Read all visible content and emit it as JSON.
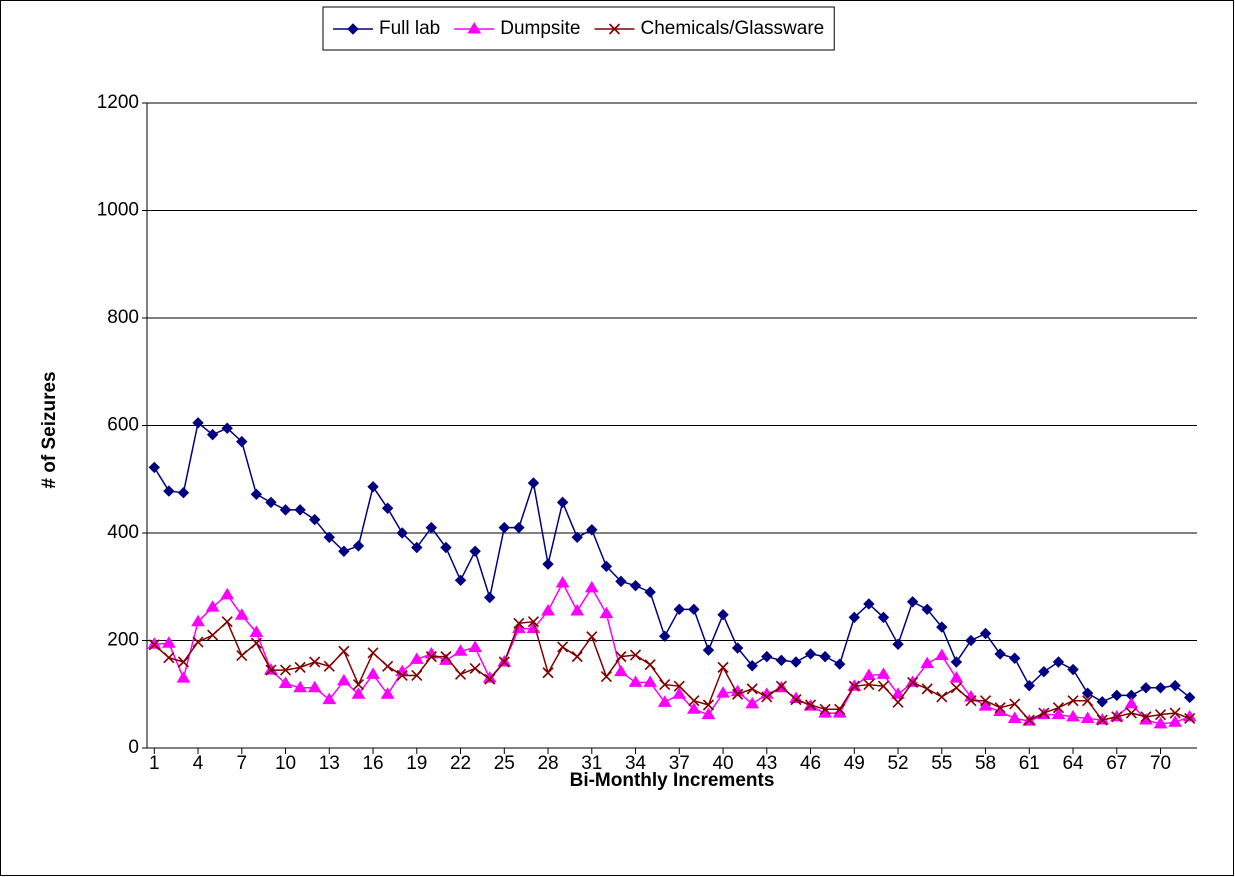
{
  "chart_data": {
    "type": "line",
    "x_label": "Bi-Monthly Increments",
    "y_label": "# of Seizures",
    "x": [
      1,
      2,
      3,
      4,
      5,
      6,
      7,
      8,
      9,
      10,
      11,
      12,
      13,
      14,
      15,
      16,
      17,
      18,
      19,
      20,
      21,
      22,
      23,
      24,
      25,
      26,
      27,
      28,
      29,
      30,
      31,
      32,
      33,
      34,
      35,
      36,
      37,
      38,
      39,
      40,
      41,
      42,
      43,
      44,
      45,
      46,
      47,
      48,
      49,
      50,
      51,
      52,
      53,
      54,
      55,
      56,
      57,
      58,
      59,
      60,
      61,
      62,
      63,
      64,
      65,
      66,
      67,
      68,
      69,
      70,
      71,
      72
    ],
    "xlim": [
      0.5,
      72.5
    ],
    "xticks": [
      1,
      4,
      7,
      10,
      13,
      16,
      19,
      22,
      25,
      28,
      31,
      34,
      37,
      40,
      43,
      46,
      49,
      52,
      55,
      58,
      61,
      64,
      67,
      70
    ],
    "ylim": [
      0,
      1200
    ],
    "yticks": [
      0,
      200,
      400,
      600,
      800,
      1000,
      1200
    ],
    "grid": true,
    "legend": "top",
    "series": [
      {
        "name": "Full lab",
        "color": "#000080",
        "marker": "diamond",
        "values": [
          522,
          478,
          475,
          605,
          583,
          595,
          570,
          472,
          457,
          443,
          443,
          425,
          392,
          366,
          376,
          486,
          446,
          400,
          373,
          410,
          373,
          312,
          366,
          280,
          410,
          410,
          493,
          342,
          457,
          392,
          406,
          338,
          310,
          302,
          290,
          208,
          258,
          258,
          182,
          248,
          186,
          153,
          170,
          163,
          160,
          175,
          170,
          156,
          243,
          268,
          243,
          193,
          272,
          258,
          225,
          160,
          200,
          213,
          175,
          167,
          116,
          142,
          160,
          146,
          102,
          86,
          98,
          98,
          112,
          112,
          116,
          94
        ]
      },
      {
        "name": "Dumpsite",
        "color": "#ff00ff",
        "marker": "triangle",
        "values": [
          193,
          195,
          130,
          235,
          262,
          285,
          247,
          215,
          145,
          120,
          112,
          112,
          90,
          125,
          100,
          137,
          100,
          142,
          165,
          175,
          163,
          180,
          187,
          130,
          160,
          222,
          222,
          255,
          307,
          255,
          298,
          250,
          142,
          122,
          122,
          85,
          100,
          72,
          62,
          102,
          105,
          82,
          100,
          112,
          92,
          78,
          65,
          65,
          115,
          135,
          137,
          100,
          122,
          157,
          172,
          130,
          95,
          78,
          68,
          55,
          50,
          62,
          62,
          58,
          55,
          52,
          58,
          82,
          52,
          45,
          48,
          58
        ]
      },
      {
        "name": "Chemicals/Glassware",
        "color": "#800000",
        "marker": "x",
        "values": [
          192,
          168,
          160,
          197,
          210,
          235,
          172,
          195,
          145,
          145,
          150,
          160,
          152,
          180,
          118,
          177,
          152,
          135,
          135,
          170,
          170,
          137,
          148,
          128,
          160,
          232,
          235,
          140,
          188,
          170,
          207,
          133,
          170,
          173,
          155,
          118,
          115,
          88,
          80,
          150,
          100,
          110,
          95,
          115,
          90,
          80,
          72,
          72,
          115,
          118,
          115,
          85,
          122,
          110,
          95,
          112,
          88,
          88,
          75,
          82,
          52,
          65,
          75,
          88,
          88,
          52,
          58,
          65,
          58,
          62,
          65,
          55
        ]
      }
    ]
  }
}
